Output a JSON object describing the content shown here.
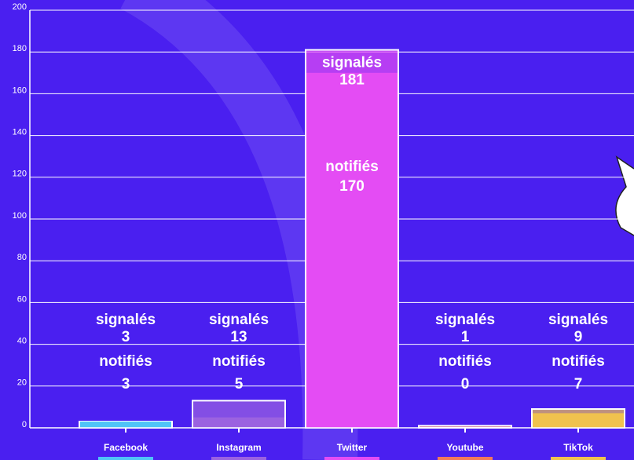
{
  "chart_data": {
    "type": "bar",
    "categories": [
      "Facebook",
      "Instagram",
      "Twitter",
      "Youtube",
      "TikTok"
    ],
    "colors": [
      "#4fc3f7",
      "#9b62e0",
      "#e44cf4",
      "#f2795a",
      "#f0c24e"
    ],
    "series": [
      {
        "name": "signalés",
        "values": [
          3,
          13,
          181,
          1,
          9
        ]
      },
      {
        "name": "notifiés",
        "values": [
          3,
          5,
          170,
          0,
          7
        ]
      }
    ],
    "ylim": [
      0,
      200
    ],
    "yticks": [
      0,
      20,
      40,
      60,
      80,
      100,
      120,
      140,
      160,
      180,
      200
    ],
    "grid": true
  }
}
